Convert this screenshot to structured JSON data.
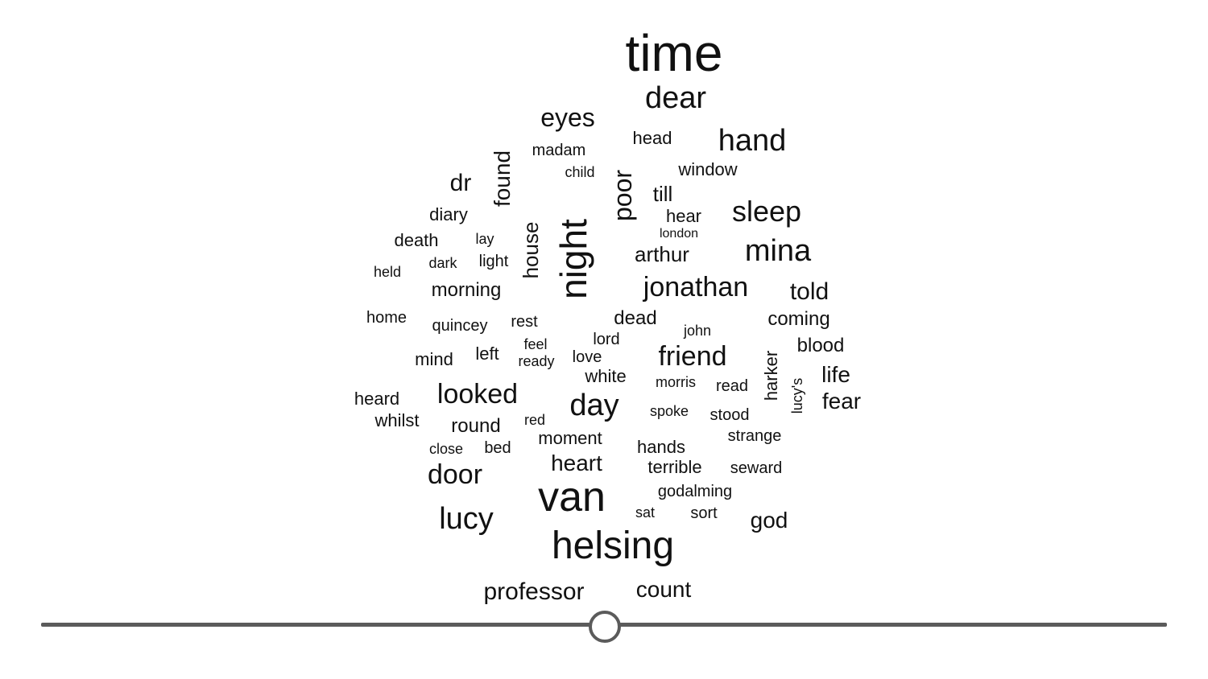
{
  "word_cloud": {
    "words": [
      {
        "text": "time"
      },
      {
        "text": "dear"
      },
      {
        "text": "eyes"
      },
      {
        "text": "head"
      },
      {
        "text": "hand"
      },
      {
        "text": "madam"
      },
      {
        "text": "child"
      },
      {
        "text": "window"
      },
      {
        "text": "found"
      },
      {
        "text": "dr"
      },
      {
        "text": "poor"
      },
      {
        "text": "till"
      },
      {
        "text": "diary"
      },
      {
        "text": "hear"
      },
      {
        "text": "sleep"
      },
      {
        "text": "london"
      },
      {
        "text": "lay"
      },
      {
        "text": "death"
      },
      {
        "text": "house"
      },
      {
        "text": "night"
      },
      {
        "text": "mina"
      },
      {
        "text": "arthur"
      },
      {
        "text": "dark"
      },
      {
        "text": "light"
      },
      {
        "text": "held"
      },
      {
        "text": "jonathan"
      },
      {
        "text": "morning"
      },
      {
        "text": "told"
      },
      {
        "text": "home"
      },
      {
        "text": "dead"
      },
      {
        "text": "coming"
      },
      {
        "text": "quincey"
      },
      {
        "text": "rest"
      },
      {
        "text": "john"
      },
      {
        "text": "lord"
      },
      {
        "text": "feel"
      },
      {
        "text": "blood"
      },
      {
        "text": "friend"
      },
      {
        "text": "left"
      },
      {
        "text": "mind"
      },
      {
        "text": "ready"
      },
      {
        "text": "love"
      },
      {
        "text": "harker"
      },
      {
        "text": "life"
      },
      {
        "text": "white"
      },
      {
        "text": "morris"
      },
      {
        "text": "read"
      },
      {
        "text": "lucy's"
      },
      {
        "text": "heard"
      },
      {
        "text": "looked"
      },
      {
        "text": "day"
      },
      {
        "text": "fear"
      },
      {
        "text": "whilst"
      },
      {
        "text": "spoke"
      },
      {
        "text": "stood"
      },
      {
        "text": "red"
      },
      {
        "text": "round"
      },
      {
        "text": "strange"
      },
      {
        "text": "moment"
      },
      {
        "text": "close"
      },
      {
        "text": "bed"
      },
      {
        "text": "hands"
      },
      {
        "text": "heart"
      },
      {
        "text": "terrible"
      },
      {
        "text": "seward"
      },
      {
        "text": "door"
      },
      {
        "text": "van"
      },
      {
        "text": "godalming"
      },
      {
        "text": "sat"
      },
      {
        "text": "sort"
      },
      {
        "text": "lucy"
      },
      {
        "text": "god"
      },
      {
        "text": "helsing"
      },
      {
        "text": "professor"
      },
      {
        "text": "count"
      }
    ]
  },
  "slider": {
    "value": 0.5
  }
}
